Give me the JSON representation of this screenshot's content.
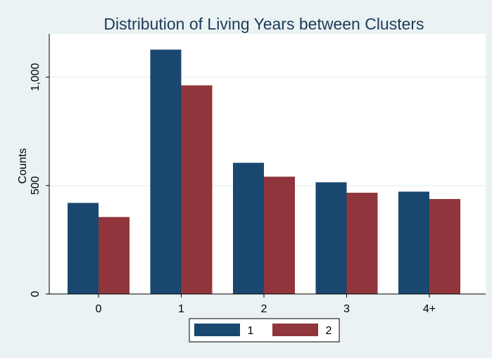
{
  "chart_data": {
    "type": "bar",
    "title": "Distribution of Living Years between Clusters",
    "xlabel": "",
    "ylabel": "Counts",
    "categories": [
      "0",
      "1",
      "2",
      "3",
      "4+"
    ],
    "series": [
      {
        "name": "1",
        "values": [
          420,
          1127,
          605,
          515,
          472
        ],
        "color": "#1a476f"
      },
      {
        "name": "2",
        "values": [
          355,
          962,
          541,
          467,
          438
        ],
        "color": "#90353b"
      }
    ],
    "ylim": [
      0,
      1200
    ],
    "yticks": [
      {
        "value": 0,
        "label": "0"
      },
      {
        "value": 500,
        "label": "500"
      },
      {
        "value": 1000,
        "label": "1,000"
      }
    ],
    "grid": true,
    "legend_position": "bottom"
  }
}
